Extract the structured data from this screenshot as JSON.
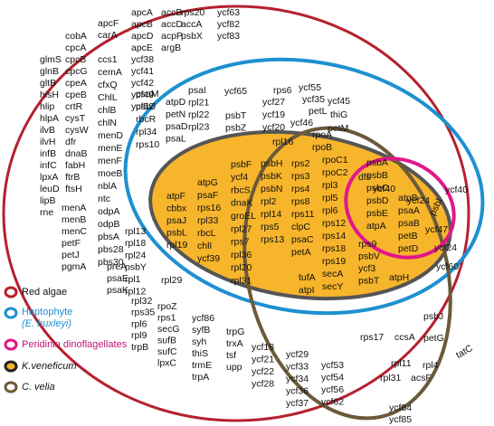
{
  "legend": [
    "Red algae",
    "Haptophyte",
    "(E. huxleyi)",
    "Peridinin dinoflagellates",
    "K.veneficum",
    "C. velia"
  ],
  "genes": [
    [
      "glmS",
      "glnB",
      "gltB",
      "hisH",
      "hlip",
      "hlpA",
      "ilvB",
      "ilvH",
      "infB",
      "infC",
      "lpxA",
      "leuD",
      "lipB",
      "rne"
    ],
    [
      "cobA",
      "cpcA",
      "cpcB",
      "cpcG",
      "cpeA",
      "cpeB",
      "crtR",
      "cysT",
      "cysW",
      "dfr",
      "dnaB",
      "fabH",
      "ftrB",
      "ftsH"
    ],
    [
      "apcF",
      "carA"
    ],
    [
      "ccs1",
      "cemA",
      "cfxQ",
      "ChlL",
      "chlB",
      "chlN",
      "menD",
      "menE",
      "menF",
      "moeB",
      "nblA",
      "ntc",
      "odpA",
      "odpB",
      "pbsA",
      "pbs28",
      "pbs30"
    ],
    [
      "menA",
      "menB",
      "menC",
      "petF",
      "petJ",
      "pgmA"
    ],
    [
      "preA",
      "psaE",
      "psaK"
    ],
    [
      "apcA",
      "apcB",
      "apcD",
      "apcE",
      "ycf38",
      "ycf41",
      "ycf42",
      "ycf49",
      "ycf52"
    ],
    [
      "accB",
      "accD",
      "acpP",
      "argB"
    ],
    [
      "rps20",
      "accA",
      "psbX"
    ],
    [
      "ycf63",
      "ycf82",
      "ycf83"
    ],
    [
      "psaM",
      "psbJ",
      "rbcR",
      "rpl34",
      "rps10"
    ],
    [
      "atpD",
      "petN",
      "psaD",
      "psaL"
    ],
    [
      "psaI",
      "rpl21",
      "rpl22",
      "rpl23"
    ],
    [
      "ycf65"
    ],
    [
      "psbT",
      "psbZ"
    ],
    [
      "rps6"
    ],
    [
      "ycf27",
      "ycf19",
      "ycf20"
    ],
    [
      "ycf55"
    ],
    [
      "ycf35"
    ],
    [
      "petL"
    ],
    [
      "ycf46"
    ],
    [
      "ycf45"
    ],
    [
      "thiG"
    ],
    [
      "petM"
    ],
    [
      "dfs"
    ],
    [
      "ycf40"
    ],
    [
      "ycf24"
    ],
    [
      "ycf40"
    ],
    [
      "ycf47"
    ],
    [
      "ycf24"
    ],
    [
      "ycf60"
    ],
    [
      "atpF",
      "cbbx",
      "psaJ",
      "psbL",
      "rpl19"
    ],
    [
      "atpG",
      "psaF",
      "rps16",
      "rpl33",
      "rbcL",
      "chlI",
      "ycf39"
    ],
    [
      "psbF",
      "ycf4",
      "rbcS",
      "dnaK",
      "groEL",
      "rpl27",
      "rps7",
      "rpl36",
      "rpl20",
      "rpl31"
    ],
    [
      "rpl16"
    ],
    [
      "psbH",
      "psbK",
      "psbN",
      "rpl2",
      "rpl14",
      "rps5",
      "rps13"
    ],
    [
      "rps2",
      "rps3",
      "rps4",
      "rps8",
      "rps11",
      "clpC",
      "psaC",
      "petA"
    ],
    [
      "rpoA",
      "rpoB"
    ],
    [
      "rpoC1",
      "rpoC2",
      "rpl3",
      "rpl5",
      "rpl6",
      "rps12",
      "rps14",
      "rps18",
      "rps19",
      "secA",
      "secY"
    ],
    [
      "tufA",
      "atpI"
    ],
    [
      "rps9",
      "psbV",
      "ycf3",
      "psbT"
    ],
    [
      "atpH"
    ],
    [
      "psbA",
      "psbB",
      "psbC",
      "psbD",
      "psbE",
      "atpA"
    ],
    [
      "atpB",
      "psaA",
      "psaB",
      "petB",
      "petD"
    ],
    [
      "psbI"
    ],
    [
      "rpl29"
    ],
    [
      "rpl13",
      "rpl18",
      "rpl24",
      "psbY",
      "rpl1",
      "rpl12"
    ],
    [
      "rpl32",
      "rps35",
      "rpl6",
      "rpl9",
      "trpB"
    ],
    [
      "rpoZ",
      "rps1",
      "secG",
      "sufB",
      "sufC",
      "lpxC"
    ],
    [
      "ycf86",
      "syfB",
      "syh",
      "thiS",
      "trmE",
      "trpA"
    ],
    [
      "trpG",
      "trxA",
      "tsf",
      "upp"
    ],
    [
      "ycf18",
      "ycf21",
      "ycf22",
      "ycf28"
    ],
    [
      "ycf29",
      "ycf33",
      "ycf34",
      "ycf36",
      "ycf37"
    ],
    [
      "ycf53",
      "ycf54",
      "ycf56",
      "ycf62"
    ],
    [
      "psbJ"
    ],
    [
      "rps17"
    ],
    [
      "ccsA"
    ],
    [
      "petG"
    ],
    [
      "tatC"
    ],
    [
      "rpl11"
    ],
    [
      "rpl4"
    ],
    [
      "rpl31"
    ],
    [
      "acsF"
    ],
    [
      "ycf84",
      "ycf85"
    ]
  ]
}
